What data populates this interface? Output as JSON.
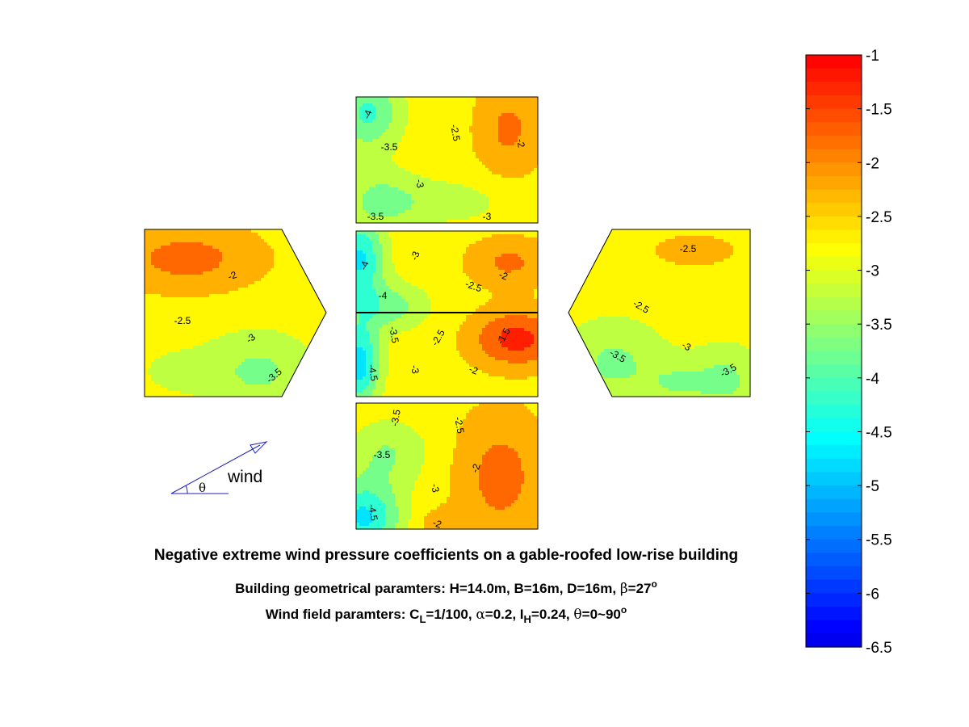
{
  "chart_data": {
    "type": "heatmap",
    "title": "Negative extreme wind pressure coefficients on a gable-roofed low-rise building",
    "colorbar": {
      "min": -6.5,
      "max": -1,
      "ticks": [
        -1,
        -1.5,
        -2,
        -2.5,
        -3,
        -3.5,
        -4,
        -4.5,
        -5,
        -5.5,
        -6,
        -6.5
      ],
      "tick_labels": [
        "-1",
        "-1.5",
        "-2",
        "-2.5",
        "-3",
        "-3.5",
        "-4",
        "-4.5",
        "-5",
        "-5.5",
        "-6",
        "-6.5"
      ],
      "levels": 44,
      "colormap": "jet"
    },
    "panels": [
      {
        "name": "upper-wall",
        "contour_labels": [
          "-4",
          "-3.5",
          "-2.5",
          "-2",
          "-3",
          "-3.5",
          "-3"
        ]
      },
      {
        "name": "left-gable-wall",
        "contour_labels": [
          "-2",
          "-2.5",
          "-3",
          "-3.5"
        ]
      },
      {
        "name": "roof-upper",
        "contour_labels": [
          "-4",
          "-3",
          "-2.5",
          "-2",
          "-4"
        ]
      },
      {
        "name": "roof-lower",
        "contour_labels": [
          "-3.5",
          "-4.5",
          "-3",
          "-2.5",
          "-2",
          "-1.5"
        ]
      },
      {
        "name": "right-gable-wall",
        "contour_labels": [
          "-2.5",
          "-2.5",
          "-3",
          "-3.5",
          "-3.5"
        ]
      },
      {
        "name": "lower-wall",
        "contour_labels": [
          "-3.5",
          "-3.5",
          "-2.5",
          "-3",
          "-2",
          "-4.5",
          "-2"
        ]
      }
    ]
  },
  "legend": {
    "wind_label": "wind",
    "angle_symbol": "θ",
    "arrow_color": "#1f1fbf"
  },
  "captions": {
    "title": "Negative extreme wind pressure coefficients on a gable-roofed low-rise building",
    "geom_prefix": "Building geometrical paramters: H=14.0m, B=16m, D=16m, ",
    "geom_beta_symbol": "β",
    "geom_beta_value": "=27",
    "geom_deg": "o",
    "wind_prefix": "Wind field paramters: C",
    "wind_cl_sub": "L",
    "wind_cl_value": "=1/100, ",
    "wind_alpha_symbol": "α",
    "wind_alpha_value": "=0.2, I",
    "wind_ih_sub": "H",
    "wind_ih_value": "=0.24, ",
    "wind_theta_symbol": "θ",
    "wind_theta_value": "=0~90",
    "wind_deg": "o"
  }
}
